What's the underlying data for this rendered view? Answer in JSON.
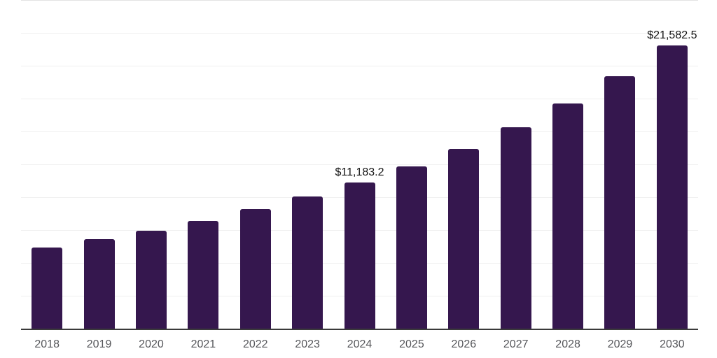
{
  "chart_data": {
    "type": "bar",
    "title": "",
    "xlabel": "",
    "ylabel": "",
    "categories": [
      "2018",
      "2019",
      "2020",
      "2021",
      "2022",
      "2023",
      "2024",
      "2025",
      "2026",
      "2027",
      "2028",
      "2029",
      "2030"
    ],
    "values": [
      6200,
      6850,
      7480,
      8230,
      9130,
      10130,
      11183.2,
      12420,
      13750,
      15390,
      17200,
      19270,
      21582.5
    ],
    "data_labels": [
      null,
      null,
      null,
      null,
      null,
      null,
      "$11,183.2",
      null,
      null,
      null,
      null,
      null,
      "$21,582.5"
    ],
    "ylim": [
      0,
      25000
    ],
    "gridline_interval": 2500,
    "grid": true,
    "legend_position": "none",
    "y_axis_tick_labels_visible": false,
    "bar_color": "#35174e",
    "gridline_color": "#f0f0f0",
    "top_gridline_color": "#e3e3e3",
    "axis_line_color": "#3a3a3a",
    "x_tick_label_color": "#55565a",
    "data_label_color": "#121212",
    "background_color": "#ffffff"
  }
}
